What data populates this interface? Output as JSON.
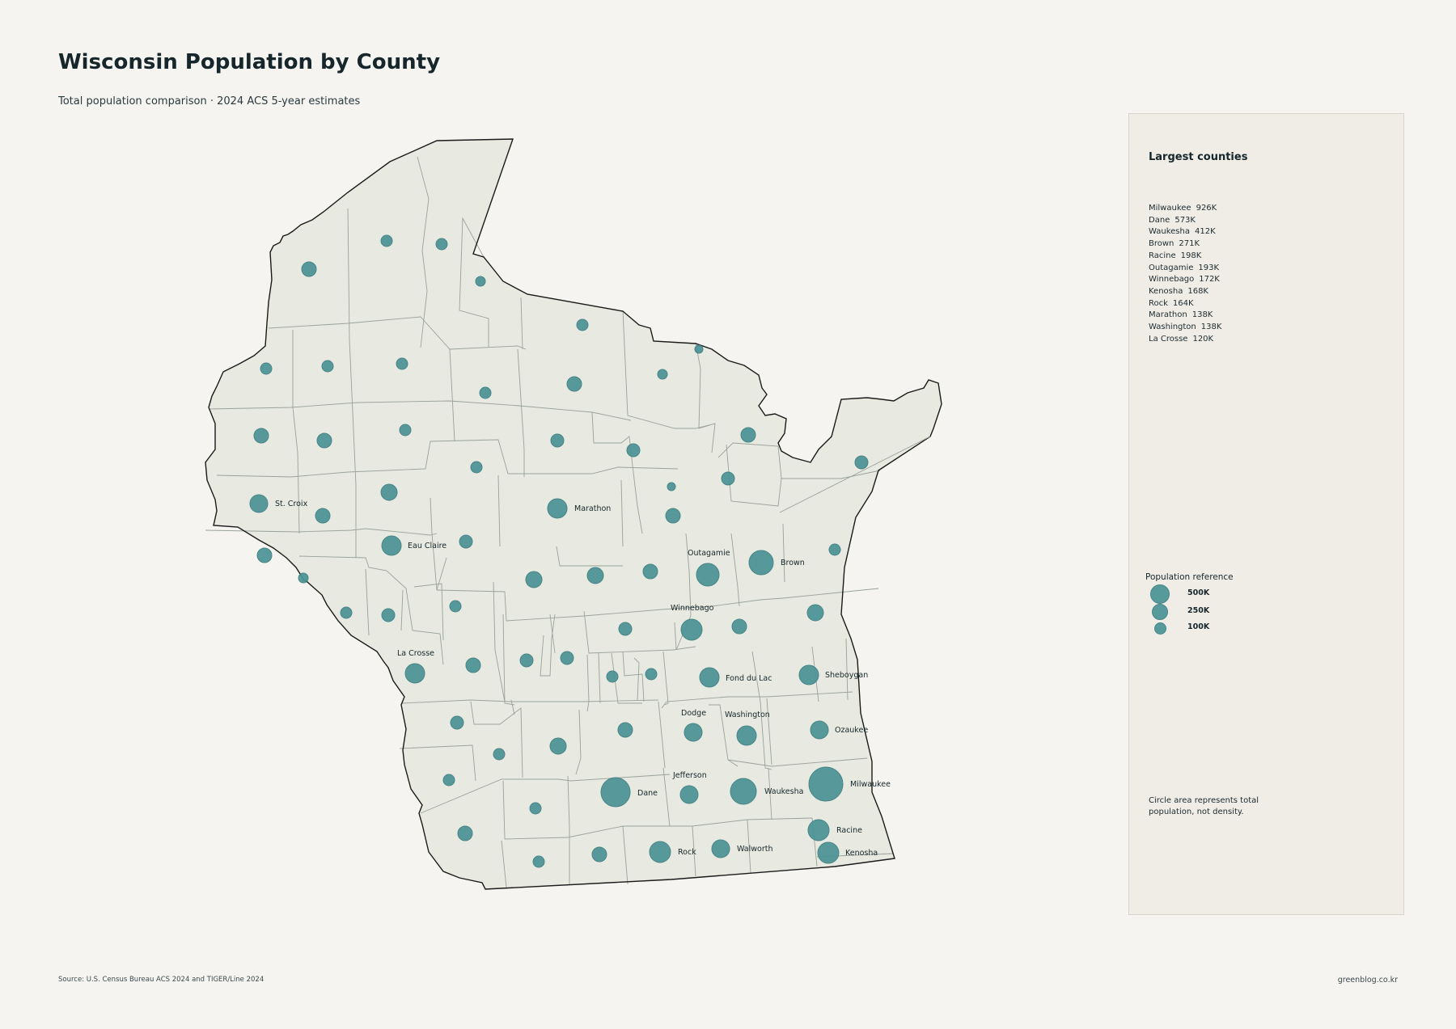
{
  "header": {
    "title": "Wisconsin Population by County",
    "subtitle": "Total population comparison · 2024 ACS 5-year estimates"
  },
  "map": {
    "label_counties": [
      {
        "name": "St. Croix"
      },
      {
        "name": "Marathon"
      },
      {
        "name": "Eau Claire"
      },
      {
        "name": "Outagamie"
      },
      {
        "name": "Brown"
      },
      {
        "name": "Winnebago"
      },
      {
        "name": "La Crosse"
      },
      {
        "name": "Fond du Lac"
      },
      {
        "name": "Sheboygan"
      },
      {
        "name": "Dodge"
      },
      {
        "name": "Washington"
      },
      {
        "name": "Ozaukee"
      },
      {
        "name": "Jefferson"
      },
      {
        "name": "Dane"
      },
      {
        "name": "Waukesha"
      },
      {
        "name": "Milwaukee"
      },
      {
        "name": "Racine"
      },
      {
        "name": "Rock"
      },
      {
        "name": "Walworth"
      },
      {
        "name": "Kenosha"
      }
    ],
    "colors": {
      "land": "#e8e9e1",
      "border": "#9aa39a",
      "outline": "#1a1a1a",
      "bubble": "#4b9396"
    }
  },
  "panel": {
    "title": "Largest counties",
    "rankings": [
      {
        "name": "Milwaukee",
        "value": "926K"
      },
      {
        "name": "Dane",
        "value": "573K"
      },
      {
        "name": "Waukesha",
        "value": "412K"
      },
      {
        "name": "Brown",
        "value": "271K"
      },
      {
        "name": "Racine",
        "value": "198K"
      },
      {
        "name": "Outagamie",
        "value": "193K"
      },
      {
        "name": "Winnebago",
        "value": "172K"
      },
      {
        "name": "Kenosha",
        "value": "168K"
      },
      {
        "name": "Rock",
        "value": "164K"
      },
      {
        "name": "Marathon",
        "value": "138K"
      },
      {
        "name": "Washington",
        "value": "138K"
      },
      {
        "name": "La Crosse",
        "value": "120K"
      }
    ],
    "reference_title": "Population reference",
    "reference": [
      {
        "label": "500K",
        "value": 500000
      },
      {
        "label": "250K",
        "value": 250000
      },
      {
        "label": "100K",
        "value": 100000
      }
    ],
    "note": "Circle area represents total population, not density."
  },
  "footer": {
    "source": "Source: U.S. Census Bureau ACS 2024 and TIGER/Line 2024",
    "credit": "greenblog.co.kr"
  }
}
